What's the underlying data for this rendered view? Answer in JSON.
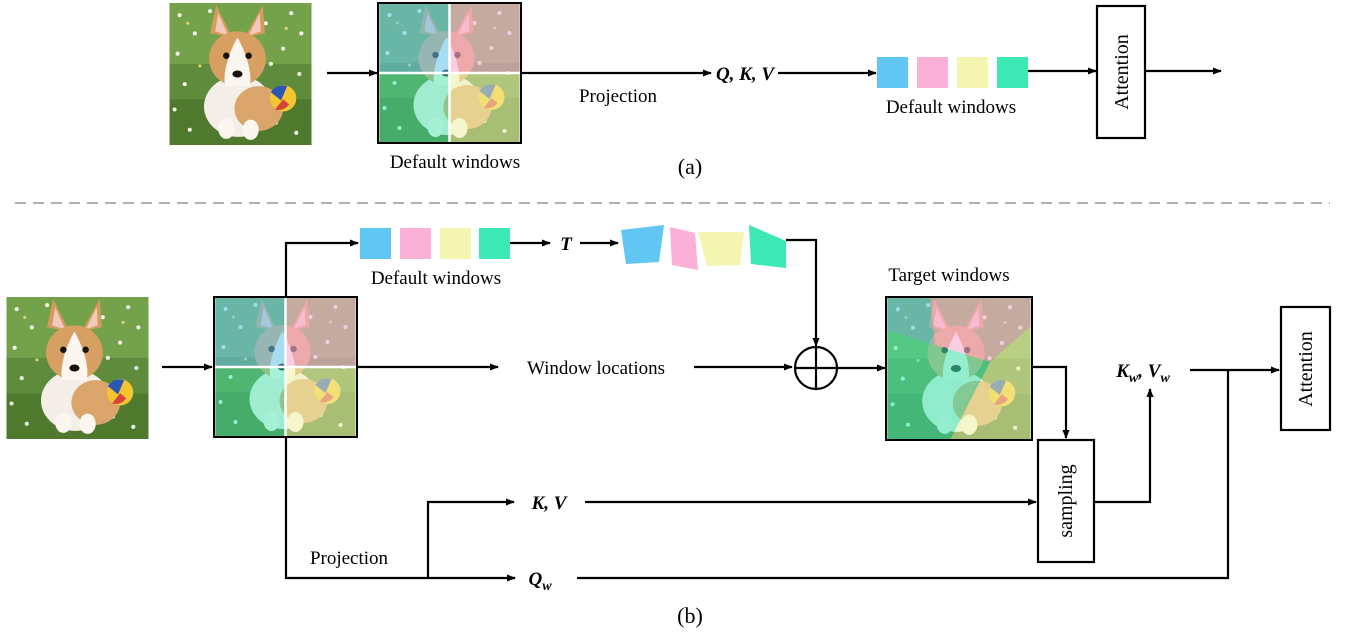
{
  "panel_a": {
    "caption": "(a)",
    "image_label": "Default windows",
    "projection_label": "Projection",
    "qkv_label": "Q, K, V",
    "windows_label": "Default windows",
    "attention_label": "Attention"
  },
  "panel_b": {
    "caption": "(b)",
    "windows_label": "Default windows",
    "transform_label": "T",
    "window_locations_label": "Window locations",
    "target_windows_label": "Target windows",
    "kw_label": "K",
    "kw_sub": "w",
    "vw_label": "V",
    "vw_sub": "w",
    "attention_label": "Attention",
    "sampling_label": "sampling",
    "kv_label": "K, V",
    "projection_label": "Projection",
    "qw_label": "Q",
    "qw_sub": "w"
  },
  "colors": {
    "cyan": "#62c6f2",
    "pink": "#fbb0d8",
    "yellow": "#f3f5b0",
    "green": "#3ce8b4",
    "divider": "#b0b0b0",
    "stroke": "#000000"
  }
}
